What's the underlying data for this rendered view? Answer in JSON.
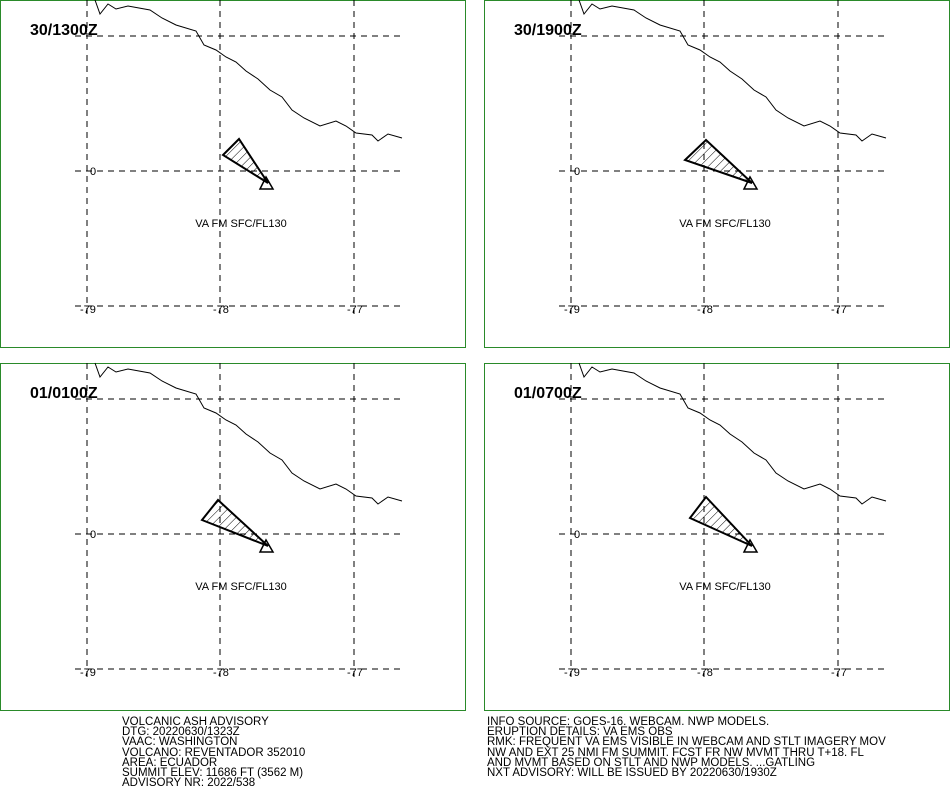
{
  "panels": [
    {
      "time": "30/1300Z",
      "layer": "VA FM SFC/FL130"
    },
    {
      "time": "30/1900Z",
      "layer": "VA FM SFC/FL130"
    },
    {
      "time": "01/0100Z",
      "layer": "VA FM SFC/FL130"
    },
    {
      "time": "01/0700Z",
      "layer": "VA FM SFC/FL130"
    }
  ],
  "grid": {
    "lat_labels": [
      "0"
    ],
    "lon_labels": [
      "-79",
      "-78",
      "-77"
    ]
  },
  "advisory_left": [
    "VOLCANIC ASH ADVISORY",
    "DTG: 20220630/1323Z",
    "VAAC: WASHINGTON",
    "VOLCANO: REVENTADOR 352010",
    "AREA: ECUADOR",
    "SUMMIT ELEV: 11686 FT (3562 M)",
    "ADVISORY NR: 2022/538"
  ],
  "advisory_right": [
    "INFO SOURCE: GOES-16. WEBCAM. NWP MODELS.",
    "ERUPTION DETAILS: VA EMS OBS",
    "RMK: FREQUENT VA EMS VISIBLE IN WEBCAM AND STLT IMAGERY MOV",
    "NW AND EXT 25 NMI FM SUMMIT. FCST FR NW MVMT THRU T+18. FL",
    "AND MVMT BASED ON STLT AND NWP MODELS. ...GATLING",
    "NXT ADVISORY: WILL BE ISSUED BY 20220630/1930Z"
  ]
}
